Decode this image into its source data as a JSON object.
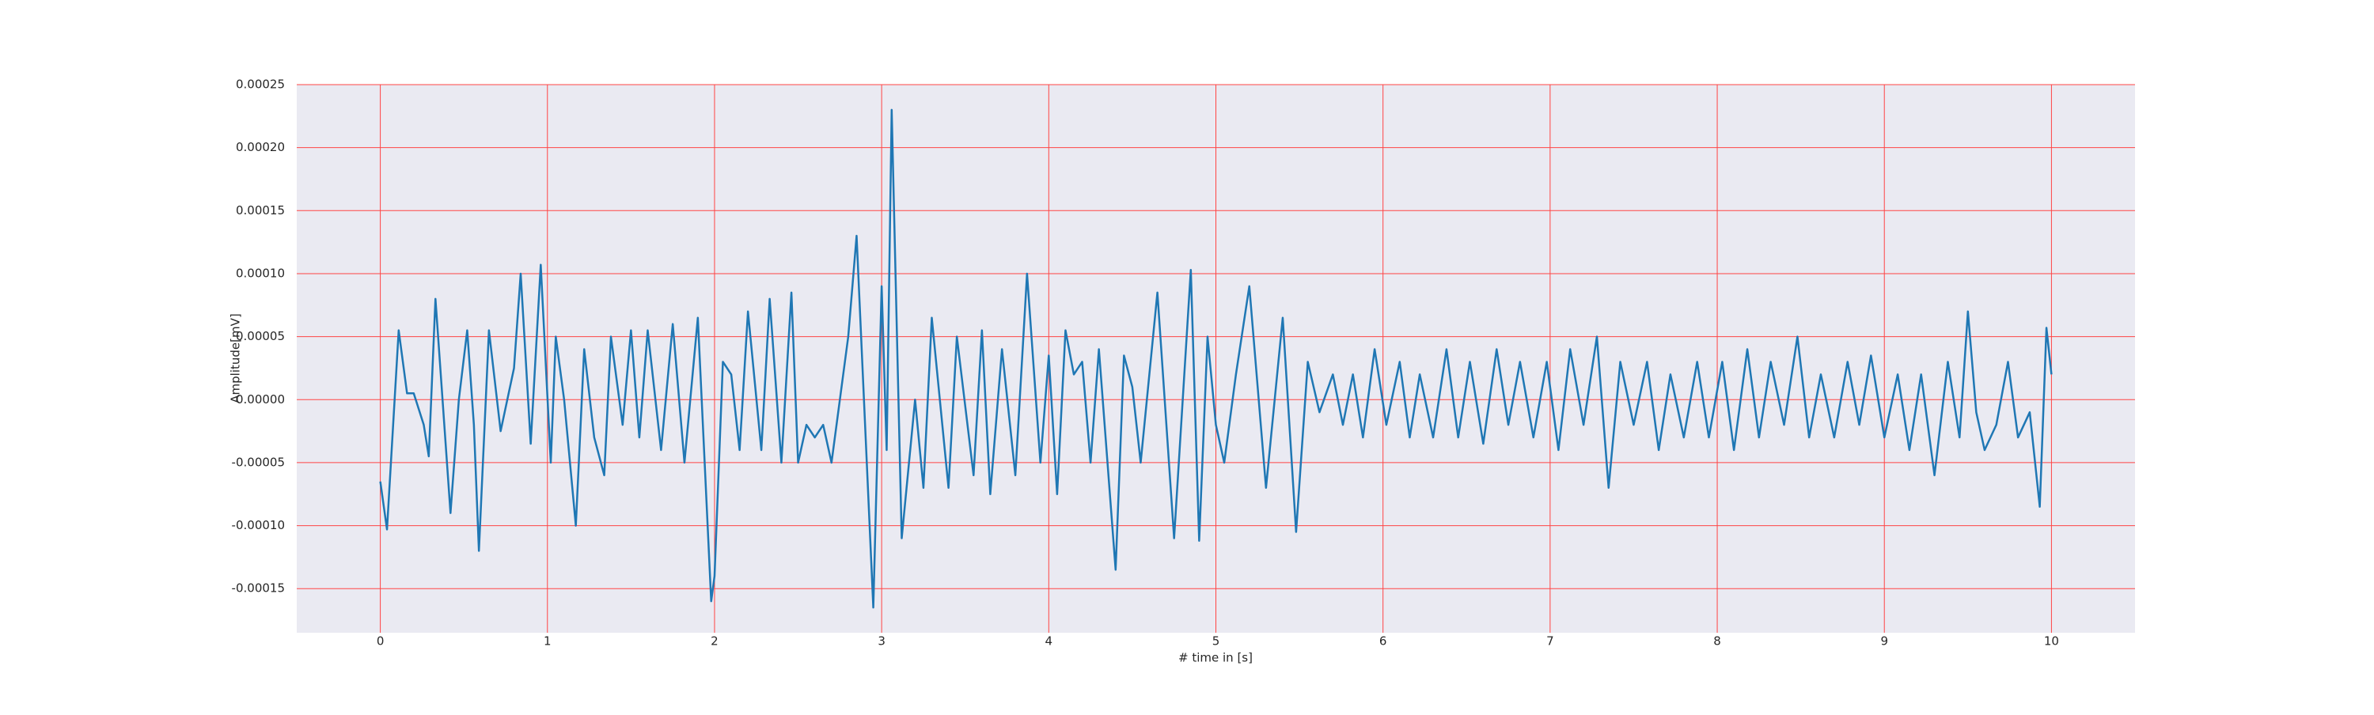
{
  "chart_data": {
    "type": "line",
    "x_label": "# time in [s]",
    "y_label": "Amplitude[mV]",
    "color": "#1f77b4",
    "background": "#eaeaf2",
    "grid": true,
    "grid_color": "#ff4444",
    "xlim": [
      -0.5,
      10.5
    ],
    "xticks": [
      0,
      1,
      2,
      3,
      4,
      5,
      6,
      7,
      8,
      9,
      10
    ],
    "ylim": [
      -0.000185,
      0.00025
    ],
    "yticks": [
      {
        "value": -0.00015,
        "label": "-0.00015"
      },
      {
        "value": -0.0001,
        "label": "-0.00010"
      },
      {
        "value": -5e-05,
        "label": "-0.00005"
      },
      {
        "value": 0,
        "label": "0.00000"
      },
      {
        "value": 5e-05,
        "label": "0.00005"
      },
      {
        "value": 0.0001,
        "label": "0.00010"
      },
      {
        "value": 0.00015,
        "label": "0.00015"
      },
      {
        "value": 0.0002,
        "label": "0.00020"
      },
      {
        "value": 0.00025,
        "label": "0.00025"
      }
    ],
    "x": [
      0,
      0.04,
      0.11,
      0.16,
      0.2,
      0.26,
      0.29,
      0.33,
      0.42,
      0.47,
      0.52,
      0.56,
      0.59,
      0.65,
      0.72,
      0.8,
      0.84,
      0.9,
      0.96,
      1.02,
      1.05,
      1.1,
      1.17,
      1.22,
      1.28,
      1.34,
      1.38,
      1.45,
      1.5,
      1.55,
      1.6,
      1.68,
      1.75,
      1.82,
      1.9,
      1.98,
      2.0,
      2.05,
      2.1,
      2.15,
      2.2,
      2.28,
      2.33,
      2.4,
      2.46,
      2.5,
      2.55,
      2.6,
      2.65,
      2.7,
      2.8,
      2.85,
      2.95,
      3.0,
      3.03,
      3.06,
      3.12,
      3.2,
      3.25,
      3.3,
      3.4,
      3.45,
      3.55,
      3.6,
      3.65,
      3.72,
      3.8,
      3.87,
      3.95,
      4.0,
      4.05,
      4.1,
      4.15,
      4.2,
      4.25,
      4.3,
      4.4,
      4.45,
      4.5,
      4.55,
      4.65,
      4.75,
      4.85,
      4.9,
      4.95,
      5.0,
      5.05,
      5.12,
      5.2,
      5.3,
      5.4,
      5.48,
      5.55,
      5.62,
      5.7,
      5.76,
      5.82,
      5.88,
      5.95,
      6.02,
      6.1,
      6.16,
      6.22,
      6.3,
      6.38,
      6.45,
      6.52,
      6.6,
      6.68,
      6.75,
      6.82,
      6.9,
      6.98,
      7.05,
      7.12,
      7.2,
      7.28,
      7.35,
      7.42,
      7.5,
      7.58,
      7.65,
      7.72,
      7.8,
      7.88,
      7.95,
      8.03,
      8.1,
      8.18,
      8.25,
      8.32,
      8.4,
      8.48,
      8.55,
      8.62,
      8.7,
      8.78,
      8.85,
      8.92,
      9.0,
      9.08,
      9.15,
      9.22,
      9.3,
      9.38,
      9.45,
      9.5,
      9.55,
      9.6,
      9.67,
      9.74,
      9.8,
      9.87,
      9.93,
      9.97,
      10.0
    ],
    "values": [
      -6.5e-05,
      -0.000103,
      5.5e-05,
      5e-06,
      5e-06,
      -2e-05,
      -4.5e-05,
      8e-05,
      -9e-05,
      0,
      5.5e-05,
      -2e-05,
      -0.00012,
      5.5e-05,
      -2.5e-05,
      2.5e-05,
      0.0001,
      -3.5e-05,
      0.000107,
      -5e-05,
      5e-05,
      0,
      -0.0001,
      4e-05,
      -3e-05,
      -6e-05,
      5e-05,
      -2e-05,
      5.5e-05,
      -3e-05,
      5.5e-05,
      -4e-05,
      6e-05,
      -5e-05,
      6.5e-05,
      -0.00016,
      -0.00014,
      3e-05,
      2e-05,
      -4e-05,
      7e-05,
      -4e-05,
      8e-05,
      -5e-05,
      8.5e-05,
      -5e-05,
      -2e-05,
      -3e-05,
      -2e-05,
      -5e-05,
      5e-05,
      0.00013,
      -0.000165,
      9e-05,
      -4e-05,
      0.00023,
      -0.00011,
      0,
      -7e-05,
      6.5e-05,
      -7e-05,
      5e-05,
      -6e-05,
      5.5e-05,
      -7.5e-05,
      4e-05,
      -6e-05,
      0.0001,
      -5e-05,
      3.5e-05,
      -7.5e-05,
      5.5e-05,
      2e-05,
      3e-05,
      -5e-05,
      4e-05,
      -0.000135,
      3.5e-05,
      1e-05,
      -5e-05,
      8.5e-05,
      -0.00011,
      0.000103,
      -0.000112,
      5e-05,
      -2e-05,
      -5e-05,
      2e-05,
      9e-05,
      -7e-05,
      6.5e-05,
      -0.000105,
      3e-05,
      -1e-05,
      2e-05,
      -2e-05,
      2e-05,
      -3e-05,
      4e-05,
      -2e-05,
      3e-05,
      -3e-05,
      2e-05,
      -3e-05,
      4e-05,
      -3e-05,
      3e-05,
      -3.5e-05,
      4e-05,
      -2e-05,
      3e-05,
      -3e-05,
      3e-05,
      -4e-05,
      4e-05,
      -2e-05,
      5e-05,
      -7e-05,
      3e-05,
      -2e-05,
      3e-05,
      -4e-05,
      2e-05,
      -3e-05,
      3e-05,
      -3e-05,
      3e-05,
      -4e-05,
      4e-05,
      -3e-05,
      3e-05,
      -2e-05,
      5e-05,
      -3e-05,
      2e-05,
      -3e-05,
      3e-05,
      -2e-05,
      3.5e-05,
      -3e-05,
      2e-05,
      -4e-05,
      2e-05,
      -6e-05,
      3e-05,
      -3e-05,
      7e-05,
      -1e-05,
      -4e-05,
      -2e-05,
      3e-05,
      -3e-05,
      -1e-05,
      -8.5e-05,
      5.7e-05,
      2e-05
    ]
  }
}
